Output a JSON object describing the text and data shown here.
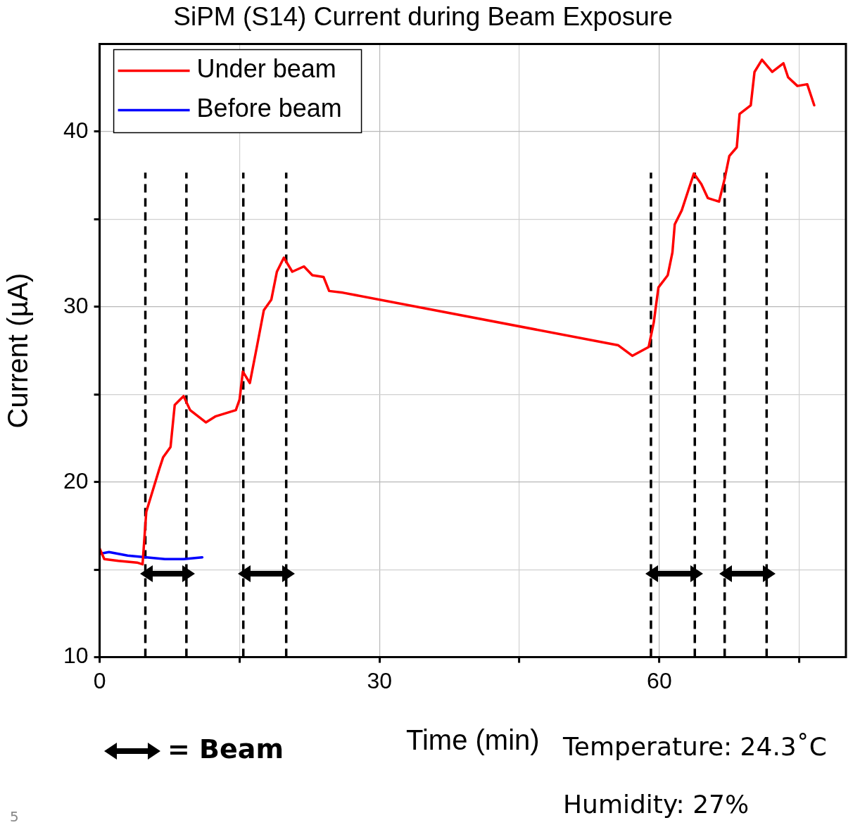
{
  "chart_data": {
    "type": "line",
    "title": "SiPM (S14) Current during Beam Exposure",
    "xlabel": "Time (min)",
    "ylabel": "Current (µA)",
    "xlim": [
      0,
      80
    ],
    "xticks": [
      0,
      {
        "value": 15,
        "label": null
      },
      30,
      {
        "value": 45,
        "label": null
      },
      60,
      {
        "value": 75,
        "label": null
      }
    ],
    "ylim": [
      10,
      45
    ],
    "yticks": [
      10,
      {
        "value": 15,
        "label": null
      },
      20,
      {
        "value": 25,
        "label": null
      },
      30,
      {
        "value": 35,
        "label": null
      },
      40
    ],
    "grid": true,
    "legend": "top left",
    "marker": "none",
    "line_style": "solid",
    "series": [
      {
        "name": "Under beam",
        "color": "#ff0000",
        "x": [
          0,
          0.5,
          2,
          4,
          4.6,
          5.0,
          6.4,
          6.8,
          7.6,
          8.05,
          9.0,
          9.7,
          11.4,
          12.45,
          14.6,
          15.0,
          15.35,
          16.1,
          16.85,
          17.6,
          18.4,
          19.0,
          19.75,
          20.65,
          21.9,
          22.8,
          24.0,
          24.6,
          26.1,
          55.6,
          57.1,
          58.85,
          59.4,
          59.9,
          60.9,
          61.4,
          61.65,
          62.4,
          63.2,
          63.7,
          64.5,
          65.2,
          66.4,
          67.0,
          67.5,
          68.3,
          68.6,
          69.8,
          70.2,
          71.0,
          72.1,
          73.3,
          73.8,
          74.8,
          75.85,
          76.6
        ],
        "values": [
          16.2,
          15.6,
          15.5,
          15.4,
          15.3,
          18.3,
          20.75,
          21.4,
          22.0,
          24.4,
          24.9,
          24.1,
          23.4,
          23.75,
          24.1,
          24.7,
          26.3,
          25.65,
          27.7,
          29.8,
          30.4,
          32.0,
          32.8,
          32.0,
          32.3,
          31.8,
          31.7,
          30.9,
          30.8,
          27.8,
          27.2,
          27.7,
          29.1,
          31.1,
          31.8,
          33.1,
          34.7,
          35.5,
          36.8,
          37.6,
          37.0,
          36.2,
          36.0,
          37.3,
          38.6,
          39.1,
          41.0,
          41.5,
          43.4,
          44.1,
          43.4,
          43.9,
          43.1,
          42.6,
          42.7,
          41.5
        ]
      },
      {
        "name": "Before beam",
        "color": "#0000ff",
        "x": [
          0,
          1,
          3,
          5,
          7,
          9,
          11
        ],
        "values": [
          15.9,
          16.0,
          15.8,
          15.7,
          15.6,
          15.6,
          15.7
        ]
      }
    ],
    "ref_lines": [
      {
        "axis": "x",
        "value": 4.9,
        "color": "#000000",
        "line_style": "dashed"
      },
      {
        "axis": "x",
        "value": 9.3,
        "color": "#000000",
        "line_style": "dashed"
      },
      {
        "axis": "x",
        "value": 15.4,
        "color": "#000000",
        "line_style": "dashed"
      },
      {
        "axis": "x",
        "value": 20.0,
        "color": "#000000",
        "line_style": "dashed"
      },
      {
        "axis": "x",
        "value": 59.1,
        "color": "#000000",
        "line_style": "dashed"
      },
      {
        "axis": "x",
        "value": 63.8,
        "color": "#000000",
        "line_style": "dashed"
      },
      {
        "axis": "x",
        "value": 67.0,
        "color": "#000000",
        "line_style": "dashed"
      },
      {
        "axis": "x",
        "value": 71.5,
        "color": "#000000",
        "line_style": "dashed"
      }
    ],
    "annotations": [
      "= Beam",
      "Temperature: 24.3˚C",
      "Humidity: 27%",
      "5"
    ]
  }
}
